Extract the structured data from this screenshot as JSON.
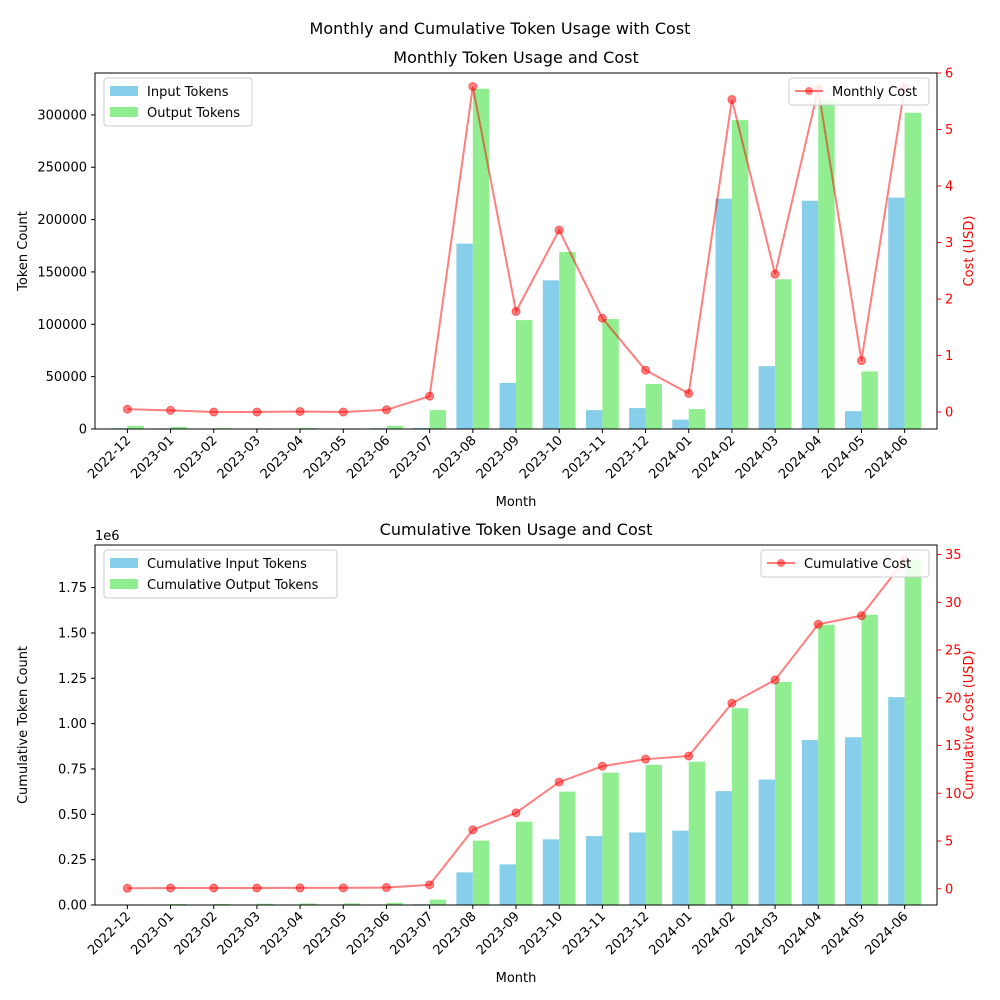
{
  "figure_title": "Monthly and Cumulative Token Usage with Cost",
  "colors": {
    "input": "#87ceeb",
    "output": "#90ee90",
    "cost": "#ff0000",
    "axis": "#000000"
  },
  "months": [
    "2022-12",
    "2023-01",
    "2023-02",
    "2023-03",
    "2023-04",
    "2023-05",
    "2023-06",
    "2023-07",
    "2023-08",
    "2023-09",
    "2023-10",
    "2023-11",
    "2023-12",
    "2024-01",
    "2024-02",
    "2024-03",
    "2024-04",
    "2024-05",
    "2024-06"
  ],
  "chart_data": [
    {
      "type": "bar",
      "title": "Monthly Token Usage and Cost",
      "xlabel": "Month",
      "ylabel": "Token Count",
      "ylabel_right": "Cost (USD)",
      "ylim": [
        0,
        340000
      ],
      "yticks": [
        0,
        50000,
        100000,
        150000,
        200000,
        250000,
        300000
      ],
      "ytick_labels": [
        "0",
        "50000",
        "100000",
        "150000",
        "200000",
        "250000",
        "300000"
      ],
      "y2lim": [
        -0.3,
        6.0
      ],
      "y2ticks": [
        0,
        1,
        2,
        3,
        4,
        5,
        6
      ],
      "y2tick_labels": [
        "0",
        "1",
        "2",
        "3",
        "4",
        "5",
        "6"
      ],
      "scale_label": "",
      "legend_left": "top-left",
      "legend_right": "top-right",
      "series": [
        {
          "name": "Input Tokens",
          "kind": "bar",
          "values": [
            800,
            600,
            200,
            200,
            300,
            200,
            800,
            1000,
            177000,
            44000,
            142000,
            18000,
            20000,
            9000,
            220000,
            60000,
            218000,
            17000,
            221000
          ]
        },
        {
          "name": "Output Tokens",
          "kind": "bar",
          "values": [
            3000,
            2000,
            800,
            600,
            1000,
            600,
            3000,
            18000,
            325000,
            104000,
            169000,
            105000,
            43000,
            19000,
            295000,
            143000,
            314000,
            55000,
            302000
          ]
        },
        {
          "name": "Monthly Cost",
          "kind": "line",
          "values": [
            0.05,
            0.03,
            0.0,
            0.0,
            0.01,
            0.0,
            0.04,
            0.28,
            5.76,
            1.78,
            3.22,
            1.66,
            0.74,
            0.33,
            5.53,
            2.44,
            5.72,
            0.91,
            5.74
          ]
        }
      ]
    },
    {
      "type": "bar",
      "title": "Cumulative Token Usage and Cost",
      "xlabel": "Month",
      "ylabel": "Cumulative Token Count",
      "ylabel_right": "Cumulative Cost (USD)",
      "scale_label": "1e6",
      "ylim": [
        0,
        1.985
      ],
      "yticks": [
        0,
        0.25,
        0.5,
        0.75,
        1.0,
        1.25,
        1.5,
        1.75
      ],
      "ytick_labels": [
        "0.00",
        "0.25",
        "0.50",
        "0.75",
        "1.00",
        "1.25",
        "1.50",
        "1.75"
      ],
      "y2lim": [
        -1.7,
        36
      ],
      "y2ticks": [
        0,
        5,
        10,
        15,
        20,
        25,
        30,
        35
      ],
      "y2tick_labels": [
        "0",
        "5",
        "10",
        "15",
        "20",
        "25",
        "30",
        "35"
      ],
      "legend_left": "top-left",
      "legend_right": "top-right",
      "series": [
        {
          "name": "Cumulative Input Tokens",
          "kind": "bar",
          "values": [
            0.001,
            0.0015,
            0.0017,
            0.0019,
            0.0022,
            0.0024,
            0.003,
            0.004,
            0.18,
            0.224,
            0.362,
            0.38,
            0.4,
            0.41,
            0.628,
            0.692,
            0.91,
            0.925,
            1.146
          ]
        },
        {
          "name": "Cumulative Output Tokens",
          "kind": "bar",
          "values": [
            0.003,
            0.005,
            0.006,
            0.007,
            0.008,
            0.009,
            0.012,
            0.03,
            0.355,
            0.459,
            0.625,
            0.73,
            0.773,
            0.79,
            1.085,
            1.23,
            1.545,
            1.6,
            1.905
          ]
        },
        {
          "name": "Cumulative Cost",
          "kind": "line",
          "values": [
            0.05,
            0.08,
            0.08,
            0.08,
            0.09,
            0.09,
            0.13,
            0.41,
            6.17,
            7.95,
            11.17,
            12.83,
            13.57,
            13.9,
            19.43,
            21.87,
            27.7,
            28.6,
            34.4
          ]
        }
      ]
    }
  ]
}
